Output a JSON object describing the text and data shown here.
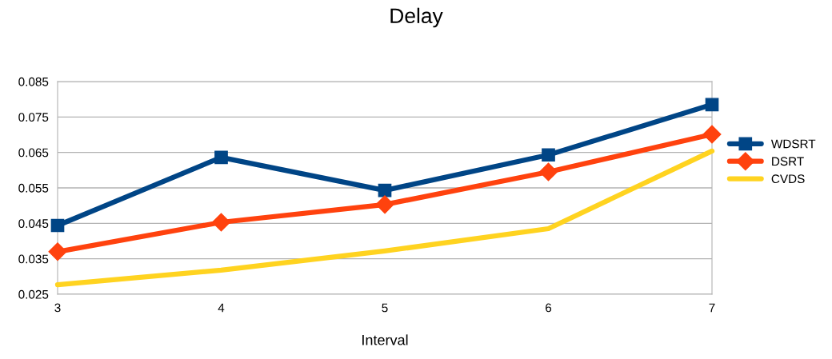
{
  "chart_data": {
    "type": "line",
    "title": "Delay",
    "xlabel": "Interval",
    "x": [
      3,
      4,
      5,
      6,
      7
    ],
    "series": [
      {
        "name": "WDSRT",
        "color": "#004586",
        "marker": "square",
        "values": [
          0.0444,
          0.0636,
          0.0543,
          0.0643,
          0.0785
        ]
      },
      {
        "name": "DSRT",
        "color": "#ff420e",
        "marker": "diamond",
        "values": [
          0.037,
          0.0453,
          0.0503,
          0.0595,
          0.0701
        ]
      },
      {
        "name": "CVDS",
        "color": "#ffd320",
        "marker": "none",
        "values": [
          0.0277,
          0.0318,
          0.0372,
          0.0435,
          0.0654
        ]
      }
    ],
    "xlim": [
      3,
      7
    ],
    "xticks": [
      3,
      4,
      5,
      6,
      7
    ],
    "ylim": [
      0.025,
      0.085
    ],
    "yticks": [
      0.025,
      0.035,
      0.045,
      0.055,
      0.065,
      0.075,
      0.085
    ],
    "grid": "y",
    "legend": "right",
    "line_style": "solid"
  }
}
